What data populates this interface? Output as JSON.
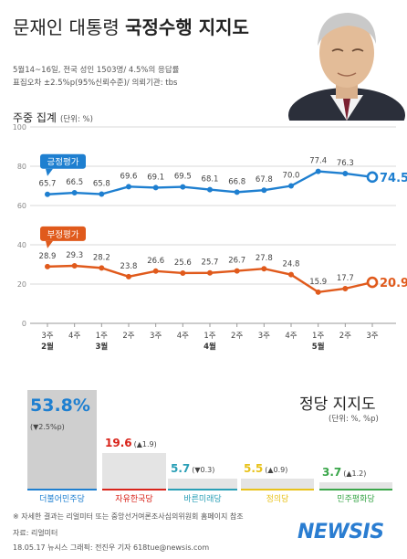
{
  "title": {
    "prefix": "문재인 대통령 ",
    "bold": "국정수행 지지도"
  },
  "subtitle": [
    "5월14~16일, 전국 성인 1503명/ 4.5%의 응답률",
    "표집오차 ±2.5%p(95%신뢰수준)/ 의뢰기관: tbs"
  ],
  "line_title": "주중 집계",
  "line_unit": "(단위: %)",
  "colors": {
    "positive": "#1e7fd0",
    "negative": "#e05a1c",
    "grid": "#d8d8d8"
  },
  "chart_data": [
    {
      "type": "line",
      "title": "주중 집계",
      "ylabel": "(단위: %)",
      "ylim": [
        0,
        100
      ],
      "yticks": [
        0,
        20,
        40,
        60,
        80,
        100
      ],
      "categories": [
        "3주",
        "4주",
        "1주",
        "2주",
        "3주",
        "4주",
        "1주",
        "2주",
        "3주",
        "4주",
        "1주",
        "2주",
        "3주"
      ],
      "month_labels": [
        {
          "index": 0,
          "label": "2월"
        },
        {
          "index": 2,
          "label": "3월"
        },
        {
          "index": 6,
          "label": "4월"
        },
        {
          "index": 10,
          "label": "5월"
        }
      ],
      "series": [
        {
          "name": "긍정평가",
          "values": [
            65.7,
            66.5,
            65.8,
            69.6,
            69.1,
            69.5,
            68.1,
            66.8,
            67.8,
            70.0,
            77.4,
            76.3,
            74.5
          ],
          "last_label": "74.5%"
        },
        {
          "name": "부정평가",
          "values": [
            28.9,
            29.3,
            28.2,
            23.8,
            26.6,
            25.6,
            25.7,
            26.7,
            27.8,
            24.8,
            15.9,
            17.7,
            20.9
          ],
          "last_label": "20.9%"
        }
      ]
    },
    {
      "type": "bar",
      "title": "정당 지지도",
      "ylabel": "(단위: %, %p)",
      "categories": [
        "더불어민주당",
        "자유한국당",
        "바른미래당",
        "정의당",
        "민주평화당"
      ],
      "values": [
        53.8,
        19.6,
        5.7,
        5.5,
        3.7
      ],
      "value_labels": [
        "53.8%",
        "19.6",
        "5.7",
        "5.5",
        "3.7"
      ],
      "changes": [
        "(▼2.5%p)",
        "(▲1.9)",
        "(▼0.3)",
        "(▲0.9)",
        "(▲1.2)"
      ],
      "colors": [
        "#1e7fd0",
        "#d9241b",
        "#2a9fb6",
        "#e8c21b",
        "#3aa64a"
      ]
    }
  ],
  "party_title": "정당 지지도",
  "party_unit": "(단위: %, %p)",
  "note": "※ 자세한 결과는 리얼미터 또는 중앙선거여론조사심의위원회 홈페이지 참조",
  "source": "자료: 리얼미터",
  "credit": "18.05.17 뉴시스 그래픽: 전진우 기자 618tue@newsis.com",
  "logo": "NEWSIS"
}
